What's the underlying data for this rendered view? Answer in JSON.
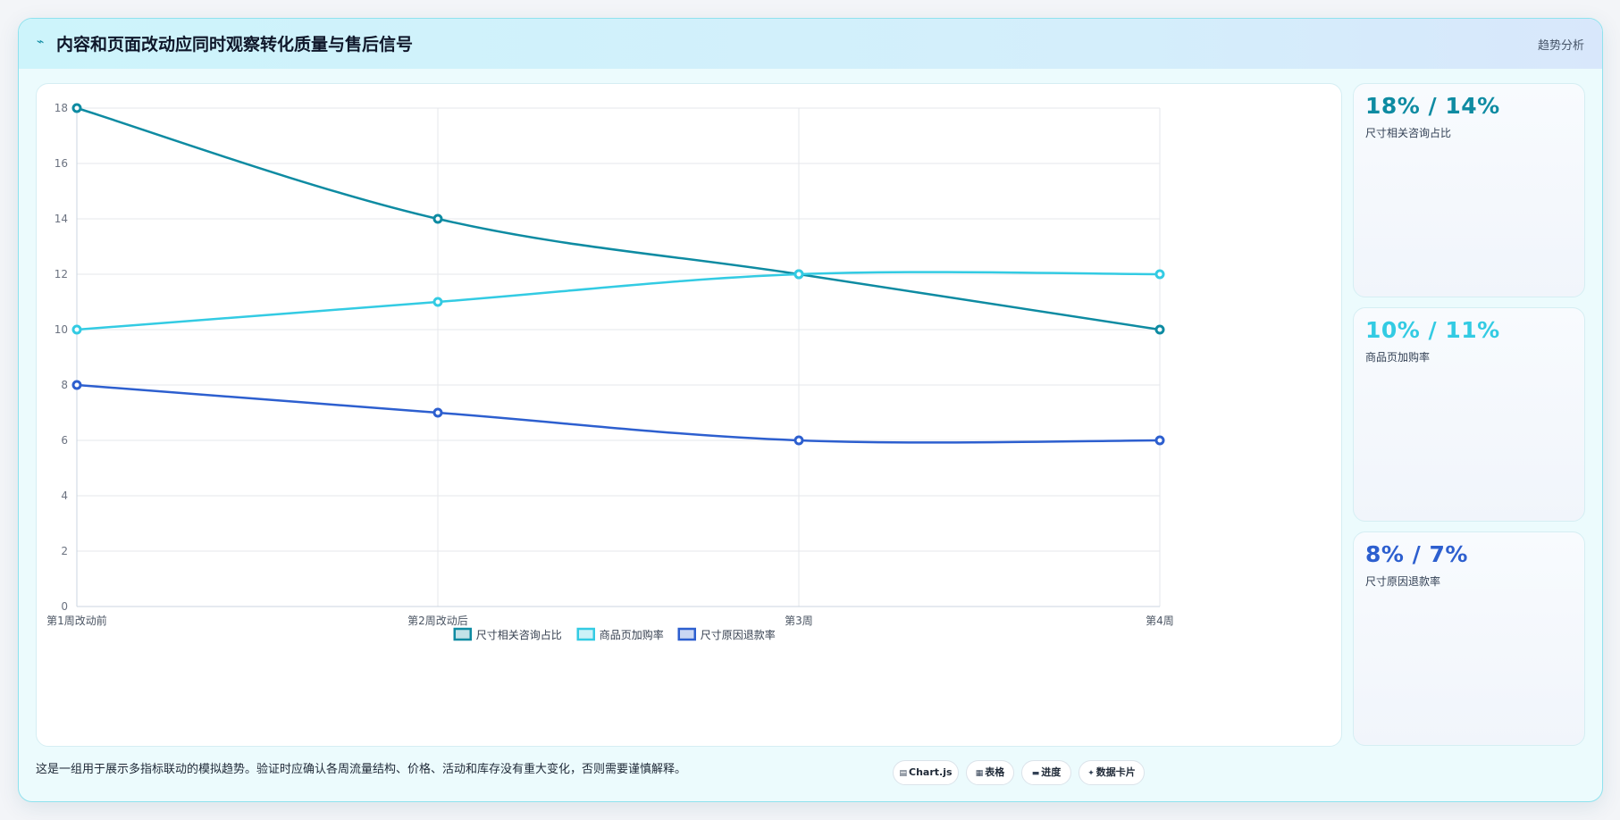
{
  "header": {
    "title": "内容和页面改动应同时观察转化质量与售后信号",
    "tag": "趋势分析"
  },
  "chart_data": {
    "type": "line",
    "categories": [
      "第1周改动前",
      "第2周改动后",
      "第3周",
      "第4周"
    ],
    "series": [
      {
        "name": "尺寸相关咨询占比",
        "values": [
          18,
          14,
          12,
          10
        ],
        "color": "#0e8ba2"
      },
      {
        "name": "商品页加购率",
        "values": [
          10,
          11,
          12,
          12
        ],
        "color": "#33cbe3"
      },
      {
        "name": "尺寸原因退款率",
        "values": [
          8,
          7,
          6,
          6
        ],
        "color": "#2d5fcf"
      }
    ],
    "yticks": [
      "0",
      "2",
      "4",
      "6",
      "8",
      "10",
      "12",
      "14",
      "16",
      "18"
    ],
    "ylim": [
      0,
      18
    ],
    "grid": true,
    "legend": "bottom"
  },
  "kpis": [
    {
      "value": "18% / 14%",
      "label": "尺寸相关咨询占比",
      "color": "#0e8ba2"
    },
    {
      "value": "10% / 11%",
      "label": "商品页加购率",
      "color": "#33cbe3"
    },
    {
      "value": "8% / 7%",
      "label": "尺寸原因退款率",
      "color": "#2d5fcf"
    }
  ],
  "footer": {
    "note": "这是一组用于展示多指标联动的模拟趋势。验证时应确认各周流量结构、价格、活动和库存没有重大变化，否则需要谨慎解释。",
    "pills": [
      {
        "icon": "chart-icon",
        "glyph": "▤",
        "label": "Chart.js"
      },
      {
        "icon": "table-icon",
        "glyph": "▦",
        "label": "表格"
      },
      {
        "icon": "progress-icon",
        "glyph": "▬",
        "label": "进度"
      },
      {
        "icon": "sparkle-icon",
        "glyph": "✦",
        "label": "数据卡片"
      }
    ]
  }
}
